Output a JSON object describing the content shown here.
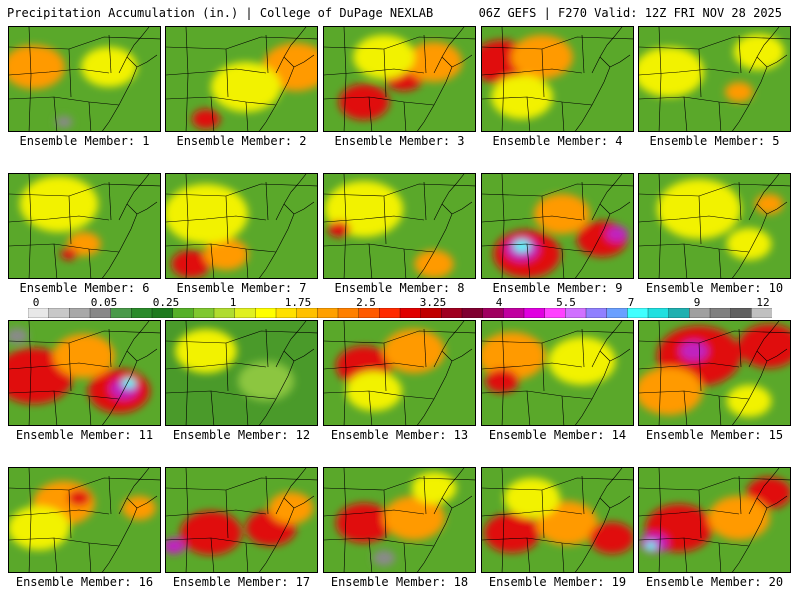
{
  "header": {
    "left_title": "Precipitation Accumulation (in.) | College of DuPage NEXLAB",
    "right_title": "06Z GEFS | F270 Valid: 12Z FRI NOV 28 2025"
  },
  "colorbar": {
    "tick_labels": [
      "0",
      "0.05",
      "0.25",
      "1",
      "1.75",
      "2.5",
      "3.25",
      "4",
      "5.5",
      "7",
      "9",
      "12"
    ],
    "colors": [
      "#e8e8e8",
      "#c8c8c8",
      "#a8a8a8",
      "#888888",
      "#4a9a4a",
      "#2a8a2a",
      "#1e7a1e",
      "#56b028",
      "#80c830",
      "#b0dc30",
      "#e0f020",
      "#ffff00",
      "#ffe000",
      "#ffc000",
      "#ffa000",
      "#ff8000",
      "#ff5a00",
      "#ff2a00",
      "#e00000",
      "#c00000",
      "#a00020",
      "#800030",
      "#a00060",
      "#c000a0",
      "#e000e0",
      "#ff40ff",
      "#d070ff",
      "#9080ff",
      "#6aa0ff",
      "#40ffff",
      "#20e0e0",
      "#20b0b0",
      "#a0a0a0",
      "#808080",
      "#606060",
      "#c0c0c0"
    ]
  },
  "colors": {
    "green": "#2e8b2e",
    "light_green": "#8cc63f",
    "yellow": "#f2f200",
    "orange": "#ff9a00",
    "red": "#e01010",
    "dark_red": "#a00020",
    "purple": "#c020c0",
    "magenta": "#ff40ff",
    "cyan": "#40ffff",
    "gray": "#8a8a8a"
  },
  "members": [
    {
      "label": "Ensemble Member: 1",
      "bg": "#5aa82a",
      "blobs": [
        {
          "c": "orange",
          "x": 25,
          "y": 40,
          "r": 22
        },
        {
          "c": "yellow",
          "x": 100,
          "y": 40,
          "r": 20
        },
        {
          "c": "gray",
          "x": 55,
          "y": 95,
          "r": 6
        }
      ]
    },
    {
      "label": "Ensemble Member: 2",
      "bg": "#5aa82a",
      "blobs": [
        {
          "c": "orange",
          "x": 130,
          "y": 40,
          "r": 24
        },
        {
          "c": "red",
          "x": 40,
          "y": 92,
          "r": 10
        },
        {
          "c": "yellow",
          "x": 80,
          "y": 60,
          "r": 25
        }
      ]
    },
    {
      "label": "Ensemble Member: 3",
      "bg": "#5aa82a",
      "blobs": [
        {
          "c": "red",
          "x": 40,
          "y": 75,
          "r": 18
        },
        {
          "c": "red",
          "x": 80,
          "y": 50,
          "r": 14
        },
        {
          "c": "orange",
          "x": 110,
          "y": 35,
          "r": 20
        },
        {
          "c": "yellow",
          "x": 60,
          "y": 30,
          "r": 22
        }
      ]
    },
    {
      "label": "Ensemble Member: 4",
      "bg": "#5aa82a",
      "blobs": [
        {
          "c": "red",
          "x": 20,
          "y": 35,
          "r": 22
        },
        {
          "c": "orange",
          "x": 60,
          "y": 30,
          "r": 22
        },
        {
          "c": "yellow",
          "x": 40,
          "y": 70,
          "r": 22
        }
      ]
    },
    {
      "label": "Ensemble Member: 5",
      "bg": "#5aa82a",
      "blobs": [
        {
          "c": "yellow",
          "x": 30,
          "y": 45,
          "r": 25
        },
        {
          "c": "orange",
          "x": 100,
          "y": 65,
          "r": 10
        },
        {
          "c": "yellow",
          "x": 120,
          "y": 25,
          "r": 18
        }
      ]
    },
    {
      "label": "Ensemble Member: 6",
      "bg": "#5aa82a",
      "blobs": [
        {
          "c": "yellow",
          "x": 50,
          "y": 30,
          "r": 28
        },
        {
          "c": "orange",
          "x": 75,
          "y": 70,
          "r": 12
        },
        {
          "c": "red",
          "x": 60,
          "y": 80,
          "r": 6
        }
      ]
    },
    {
      "label": "Ensemble Member: 7",
      "bg": "#5aa82a",
      "blobs": [
        {
          "c": "red",
          "x": 25,
          "y": 90,
          "r": 14
        },
        {
          "c": "orange",
          "x": 60,
          "y": 80,
          "r": 16
        },
        {
          "c": "yellow",
          "x": 40,
          "y": 40,
          "r": 30
        }
      ]
    },
    {
      "label": "Ensemble Member: 8",
      "bg": "#5aa82a",
      "blobs": [
        {
          "c": "yellow",
          "x": 40,
          "y": 35,
          "r": 28
        },
        {
          "c": "orange",
          "x": 110,
          "y": 90,
          "r": 14
        },
        {
          "c": "red",
          "x": 15,
          "y": 55,
          "r": 8
        }
      ]
    },
    {
      "label": "Ensemble Member: 9",
      "bg": "#5aa82a",
      "blobs": [
        {
          "c": "red",
          "x": 45,
          "y": 80,
          "r": 24
        },
        {
          "c": "purple",
          "x": 40,
          "y": 75,
          "r": 12
        },
        {
          "c": "cyan",
          "x": 40,
          "y": 72,
          "r": 6
        },
        {
          "c": "red",
          "x": 120,
          "y": 65,
          "r": 18
        },
        {
          "c": "purple",
          "x": 135,
          "y": 60,
          "r": 8
        },
        {
          "c": "orange",
          "x": 80,
          "y": 40,
          "r": 20
        }
      ]
    },
    {
      "label": "Ensemble Member: 10",
      "bg": "#5aa82a",
      "blobs": [
        {
          "c": "yellow",
          "x": 60,
          "y": 35,
          "r": 30
        },
        {
          "c": "orange",
          "x": 130,
          "y": 30,
          "r": 10
        },
        {
          "c": "yellow",
          "x": 110,
          "y": 70,
          "r": 16
        }
      ]
    },
    {
      "label": "Ensemble Member: 11",
      "bg": "#5aa82a",
      "blobs": [
        {
          "c": "red",
          "x": 25,
          "y": 55,
          "r": 28
        },
        {
          "c": "red",
          "x": 110,
          "y": 70,
          "r": 22
        },
        {
          "c": "purple",
          "x": 115,
          "y": 68,
          "r": 10
        },
        {
          "c": "cyan",
          "x": 120,
          "y": 62,
          "r": 5
        },
        {
          "c": "orange",
          "x": 75,
          "y": 35,
          "r": 22
        },
        {
          "c": "gray",
          "x": 8,
          "y": 15,
          "r": 8
        }
      ]
    },
    {
      "label": "Ensemble Member: 12",
      "bg": "#4a9a2a",
      "blobs": [
        {
          "c": "yellow",
          "x": 40,
          "y": 30,
          "r": 22
        },
        {
          "c": "light_green",
          "x": 100,
          "y": 60,
          "r": 20
        }
      ]
    },
    {
      "label": "Ensemble Member: 13",
      "bg": "#5aa82a",
      "blobs": [
        {
          "c": "red",
          "x": 40,
          "y": 45,
          "r": 20
        },
        {
          "c": "orange",
          "x": 90,
          "y": 30,
          "r": 22
        },
        {
          "c": "yellow",
          "x": 50,
          "y": 70,
          "r": 20
        }
      ]
    },
    {
      "label": "Ensemble Member: 14",
      "bg": "#5aa82a",
      "blobs": [
        {
          "c": "orange",
          "x": 30,
          "y": 35,
          "r": 24
        },
        {
          "c": "red",
          "x": 20,
          "y": 60,
          "r": 12
        },
        {
          "c": "yellow",
          "x": 100,
          "y": 40,
          "r": 24
        }
      ]
    },
    {
      "label": "Ensemble Member: 15",
      "bg": "#5aa82a",
      "blobs": [
        {
          "c": "red",
          "x": 60,
          "y": 35,
          "r": 30
        },
        {
          "c": "purple",
          "x": 55,
          "y": 30,
          "r": 10
        },
        {
          "c": "red",
          "x": 130,
          "y": 25,
          "r": 22
        },
        {
          "c": "orange",
          "x": 30,
          "y": 70,
          "r": 24
        },
        {
          "c": "yellow",
          "x": 110,
          "y": 80,
          "r": 16
        }
      ]
    },
    {
      "label": "Ensemble Member: 16",
      "bg": "#5aa82a",
      "blobs": [
        {
          "c": "orange",
          "x": 55,
          "y": 35,
          "r": 22
        },
        {
          "c": "red",
          "x": 70,
          "y": 30,
          "r": 8
        },
        {
          "c": "yellow",
          "x": 30,
          "y": 60,
          "r": 22
        },
        {
          "c": "orange",
          "x": 130,
          "y": 40,
          "r": 12
        }
      ]
    },
    {
      "label": "Ensemble Member: 17",
      "bg": "#5aa82a",
      "blobs": [
        {
          "c": "red",
          "x": 45,
          "y": 65,
          "r": 22
        },
        {
          "c": "purple",
          "x": 8,
          "y": 78,
          "r": 8
        },
        {
          "c": "red",
          "x": 105,
          "y": 60,
          "r": 18
        },
        {
          "c": "orange",
          "x": 125,
          "y": 40,
          "r": 16
        }
      ]
    },
    {
      "label": "Ensemble Member: 18",
      "bg": "#5aa82a",
      "blobs": [
        {
          "c": "red",
          "x": 40,
          "y": 55,
          "r": 20
        },
        {
          "c": "orange",
          "x": 90,
          "y": 50,
          "r": 22
        },
        {
          "c": "yellow",
          "x": 110,
          "y": 20,
          "r": 16
        },
        {
          "c": "gray",
          "x": 60,
          "y": 90,
          "r": 8
        }
      ]
    },
    {
      "label": "Ensemble Member: 19",
      "bg": "#5aa82a",
      "blobs": [
        {
          "c": "red",
          "x": 30,
          "y": 65,
          "r": 20
        },
        {
          "c": "orange",
          "x": 85,
          "y": 55,
          "r": 22
        },
        {
          "c": "red",
          "x": 130,
          "y": 70,
          "r": 16
        },
        {
          "c": "yellow",
          "x": 50,
          "y": 30,
          "r": 20
        }
      ]
    },
    {
      "label": "Ensemble Member: 20",
      "bg": "#5aa82a",
      "blobs": [
        {
          "c": "red",
          "x": 40,
          "y": 60,
          "r": 24
        },
        {
          "c": "purple",
          "x": 15,
          "y": 75,
          "r": 10
        },
        {
          "c": "cyan",
          "x": 12,
          "y": 78,
          "r": 4
        },
        {
          "c": "red",
          "x": 130,
          "y": 25,
          "r": 16
        },
        {
          "c": "orange",
          "x": 100,
          "y": 50,
          "r": 22
        }
      ]
    }
  ]
}
